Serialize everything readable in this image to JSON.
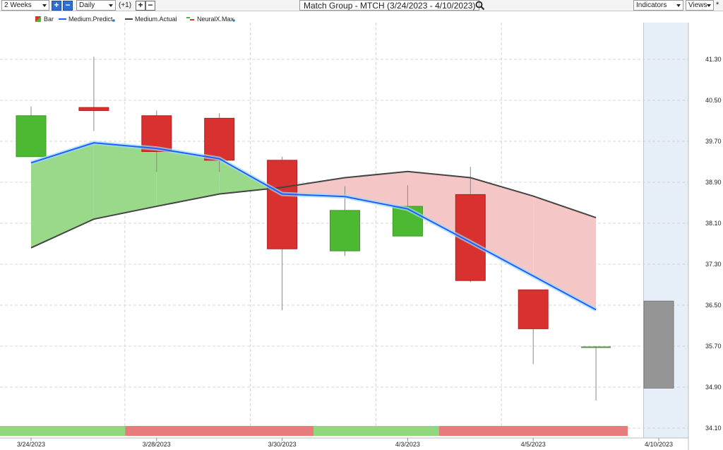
{
  "toolbar": {
    "period": "2 Weeks",
    "interval": "Daily",
    "offset": "(+1)",
    "title": "Match Group - MTCH (3/24/2023 - 4/10/2023)",
    "indicators": "Indicators",
    "views": "Views"
  },
  "legend": {
    "bar": "Bar",
    "medium_predict": "Medium.Predict",
    "medium_actual": "Medium.Actual",
    "neuralx_max": "NeuralX.Max"
  },
  "colors": {
    "up": "#4db832",
    "down": "#d93030",
    "predict": "#1f5fff",
    "actual": "#444444",
    "fill_up": "#9ad88a",
    "fill_down": "#f4c6c6",
    "forecast_bg": "#e6eef7",
    "forecast_bar": "#959595"
  },
  "chart_data": {
    "type": "candlestick",
    "y_ticks": [
      "41.30",
      "40.50",
      "39.70",
      "38.90",
      "38.10",
      "37.30",
      "36.50",
      "35.70",
      "34.90",
      "34.10"
    ],
    "ylim": [
      34.1,
      41.7
    ],
    "x_labels": [
      "3/24/2023",
      "3/28/2023",
      "3/30/2023",
      "4/3/2023",
      "4/5/2023",
      "4/10/2023"
    ],
    "x_label_index": [
      0,
      2,
      4,
      6,
      8,
      10
    ],
    "candles": [
      {
        "open": 39.4,
        "high": 40.38,
        "low": 39.4,
        "close": 40.2
      },
      {
        "open": 40.36,
        "high": 41.35,
        "low": 39.9,
        "close": 40.3
      },
      {
        "open": 40.2,
        "high": 40.3,
        "low": 39.1,
        "close": 39.5
      },
      {
        "open": 40.15,
        "high": 40.25,
        "low": 39.1,
        "close": 39.33
      },
      {
        "open": 39.33,
        "high": 39.4,
        "low": 36.4,
        "close": 37.6
      },
      {
        "open": 37.56,
        "high": 38.82,
        "low": 37.46,
        "close": 38.35
      },
      {
        "open": 37.85,
        "high": 38.84,
        "low": 37.85,
        "close": 38.43
      },
      {
        "open": 38.66,
        "high": 39.2,
        "low": 36.95,
        "close": 36.98
      },
      {
        "open": 36.8,
        "high": 36.8,
        "low": 35.35,
        "close": 36.04
      },
      {
        "open": 35.68,
        "high": 35.7,
        "low": 34.64,
        "close": 35.68
      },
      {
        "open": 36.58,
        "high": 36.58,
        "low": 34.88,
        "close": 34.88
      }
    ],
    "medium_predict": [
      39.28,
      39.67,
      39.56,
      39.36,
      38.67,
      38.62,
      38.38,
      37.73,
      37.07,
      36.41
    ],
    "medium_actual": [
      37.62,
      38.18,
      38.43,
      38.67,
      38.8,
      38.99,
      39.11,
      38.99,
      38.63,
      38.21
    ],
    "neuralx_max": [
      "up",
      "up",
      "down",
      "down",
      "down",
      "up",
      "up",
      "down",
      "down",
      "down"
    ]
  }
}
